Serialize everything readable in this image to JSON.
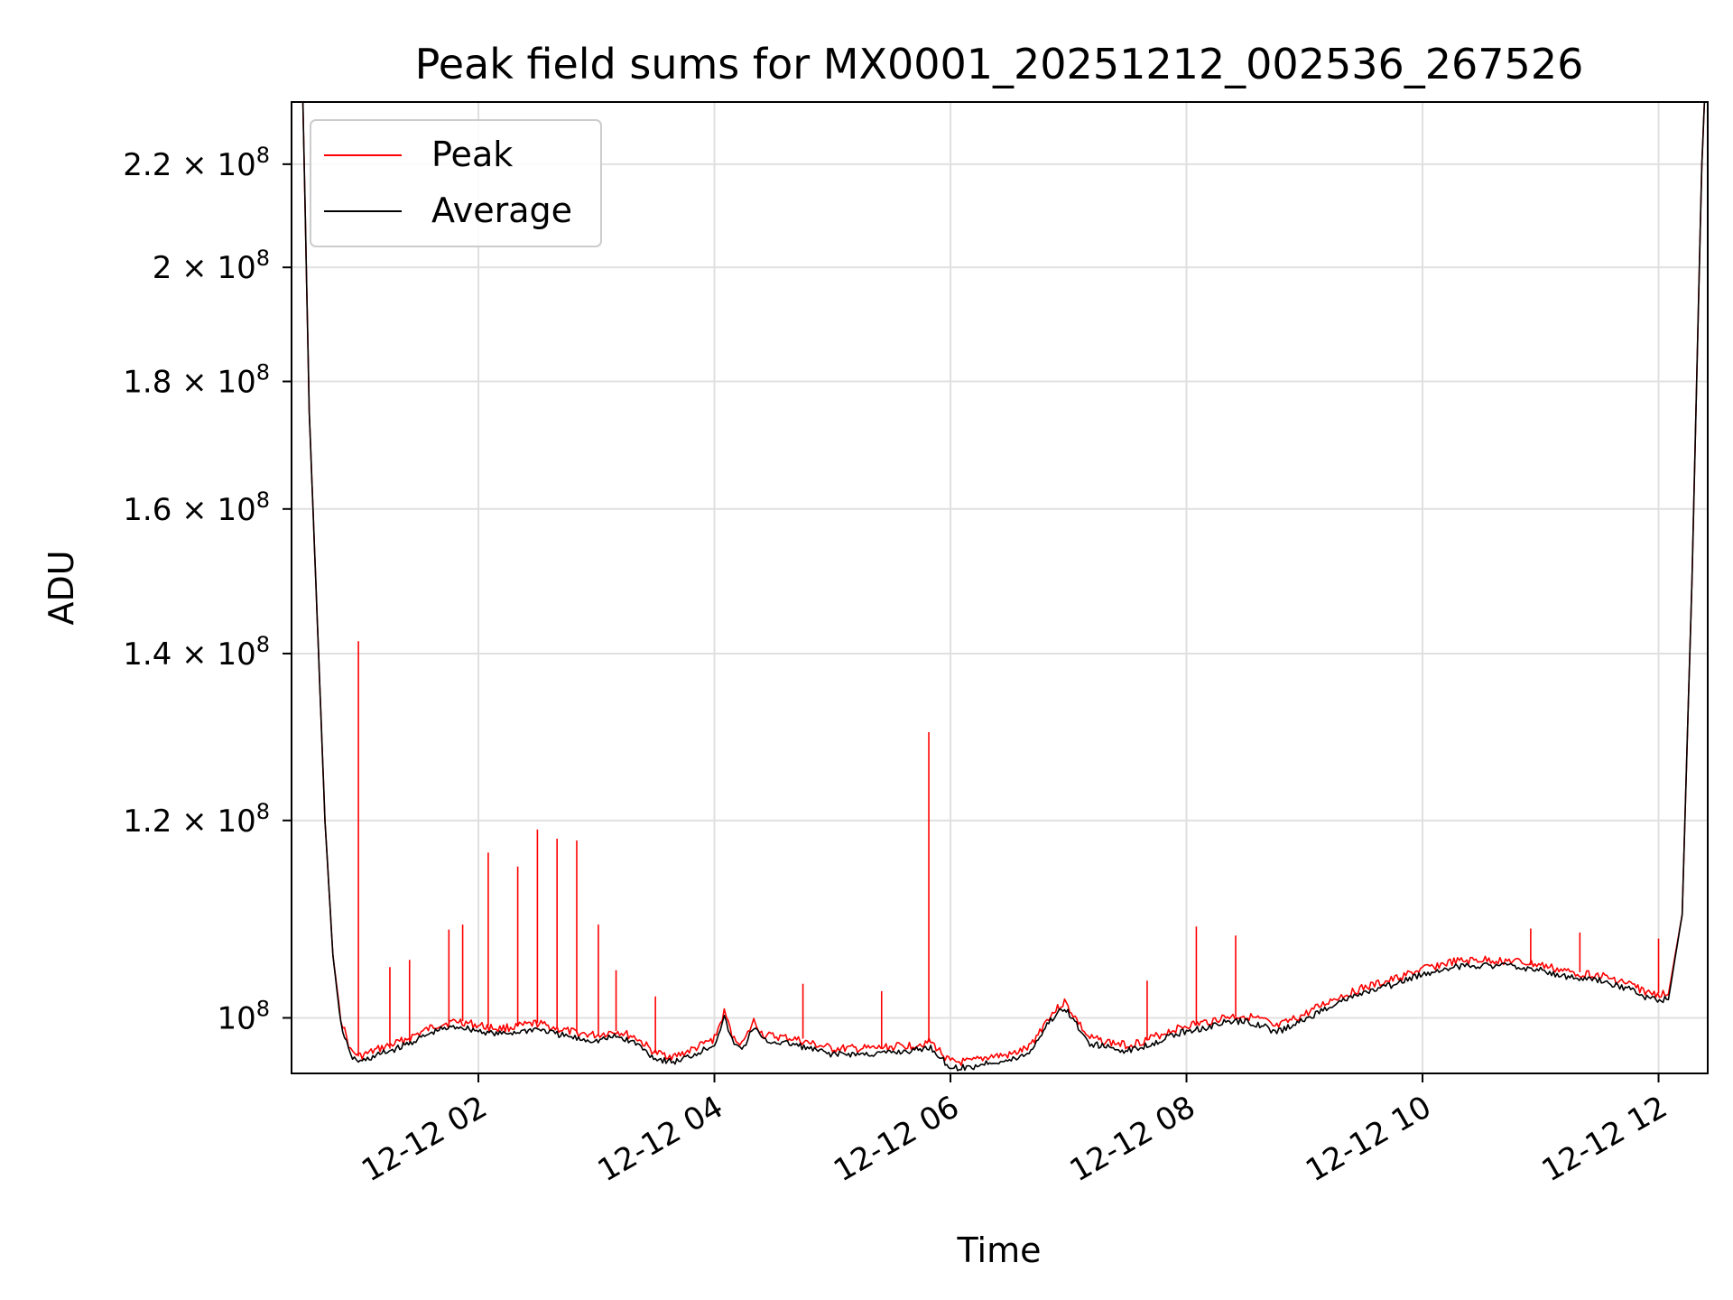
{
  "chart_data": {
    "type": "line",
    "title": "Peak field sums for MX0001_20251212_002536_267526",
    "xlabel": "Time",
    "ylabel": "ADU",
    "y_scale": "log",
    "grid": true,
    "legend_position": "top-left",
    "xlim": [
      "2025-12-12 00:25",
      "2025-12-12 12:25"
    ],
    "ylim": [
      95000000,
      233000000
    ],
    "x_ticks": [
      "12-12 02",
      "12-12 04",
      "12-12 06",
      "12-12 08",
      "12-12 10",
      "12-12 12"
    ],
    "x_tick_values": [
      "2025-12-12 02:00",
      "2025-12-12 04:00",
      "2025-12-12 06:00",
      "2025-12-12 08:00",
      "2025-12-12 10:00",
      "2025-12-12 12:00"
    ],
    "y_ticks": [
      {
        "value": 100000000,
        "mantissa": "",
        "exponent": "8"
      },
      {
        "value": 120000000,
        "mantissa": "1.2",
        "exponent": "8"
      },
      {
        "value": 140000000,
        "mantissa": "1.4",
        "exponent": "8"
      },
      {
        "value": 160000000,
        "mantissa": "1.6",
        "exponent": "8"
      },
      {
        "value": 180000000,
        "mantissa": "1.8",
        "exponent": "8"
      },
      {
        "value": 200000000,
        "mantissa": "2",
        "exponent": "8"
      },
      {
        "value": 220000000,
        "mantissa": "2.2",
        "exponent": "8"
      }
    ],
    "series": [
      {
        "name": "Peak",
        "color": "#ff0000",
        "points": [
          [
            "2025-12-12 00:30",
            250000000
          ],
          [
            "2025-12-12 00:34",
            175000000
          ],
          [
            "2025-12-12 00:38",
            145000000
          ],
          [
            "2025-12-12 00:42",
            120000000
          ],
          [
            "2025-12-12 00:46",
            106000000
          ],
          [
            "2025-12-12 00:50",
            100000000
          ],
          [
            "2025-12-12 00:55",
            97000000
          ],
          [
            "2025-12-12 01:00",
            96500000
          ],
          [
            "2025-12-12 01:10",
            97200000
          ],
          [
            "2025-12-12 01:20",
            97800000
          ],
          [
            "2025-12-12 01:30",
            98600000
          ],
          [
            "2025-12-12 01:40",
            99400000
          ],
          [
            "2025-12-12 01:50",
            99700000
          ],
          [
            "2025-12-12 02:00",
            99300000
          ],
          [
            "2025-12-12 02:10",
            99000000
          ],
          [
            "2025-12-12 02:20",
            99200000
          ],
          [
            "2025-12-12 02:30",
            99500000
          ],
          [
            "2025-12-12 02:40",
            99000000
          ],
          [
            "2025-12-12 02:50",
            98600000
          ],
          [
            "2025-12-12 03:00",
            98400000
          ],
          [
            "2025-12-12 03:10",
            98800000
          ],
          [
            "2025-12-12 03:20",
            98200000
          ],
          [
            "2025-12-12 03:30",
            96800000
          ],
          [
            "2025-12-12 03:40",
            96500000
          ],
          [
            "2025-12-12 03:50",
            97200000
          ],
          [
            "2025-12-12 04:00",
            98100000
          ],
          [
            "2025-12-12 04:05",
            100500000
          ],
          [
            "2025-12-12 04:10",
            98000000
          ],
          [
            "2025-12-12 04:15",
            97800000
          ],
          [
            "2025-12-12 04:20",
            99700000
          ],
          [
            "2025-12-12 04:25",
            98400000
          ],
          [
            "2025-12-12 04:40",
            98100000
          ],
          [
            "2025-12-12 04:50",
            97600000
          ],
          [
            "2025-12-12 05:00",
            97200000
          ],
          [
            "2025-12-12 05:20",
            97200000
          ],
          [
            "2025-12-12 05:40",
            97500000
          ],
          [
            "2025-12-12 05:50",
            97800000
          ],
          [
            "2025-12-12 06:00",
            96000000
          ],
          [
            "2025-12-12 06:10",
            96000000
          ],
          [
            "2025-12-12 06:20",
            96500000
          ],
          [
            "2025-12-12 06:30",
            96600000
          ],
          [
            "2025-12-12 06:40",
            97300000
          ],
          [
            "2025-12-12 06:50",
            100100000
          ],
          [
            "2025-12-12 06:58",
            101500000
          ],
          [
            "2025-12-12 07:05",
            99600000
          ],
          [
            "2025-12-12 07:10",
            98200000
          ],
          [
            "2025-12-12 07:20",
            97800000
          ],
          [
            "2025-12-12 07:30",
            97500000
          ],
          [
            "2025-12-12 07:40",
            98000000
          ],
          [
            "2025-12-12 07:50",
            98700000
          ],
          [
            "2025-12-12 08:00",
            99300000
          ],
          [
            "2025-12-12 08:10",
            99600000
          ],
          [
            "2025-12-12 08:20",
            100100000
          ],
          [
            "2025-12-12 08:30",
            100200000
          ],
          [
            "2025-12-12 08:40",
            99700000
          ],
          [
            "2025-12-12 08:45",
            99100000
          ],
          [
            "2025-12-12 09:00",
            100300000
          ],
          [
            "2025-12-12 09:15",
            101800000
          ],
          [
            "2025-12-12 09:30",
            102800000
          ],
          [
            "2025-12-12 09:45",
            103600000
          ],
          [
            "2025-12-12 10:00",
            104600000
          ],
          [
            "2025-12-12 10:15",
            105300000
          ],
          [
            "2025-12-12 10:30",
            105500000
          ],
          [
            "2025-12-12 10:45",
            105400000
          ],
          [
            "2025-12-12 11:00",
            105000000
          ],
          [
            "2025-12-12 11:15",
            104300000
          ],
          [
            "2025-12-12 11:30",
            104000000
          ],
          [
            "2025-12-12 11:45",
            103200000
          ],
          [
            "2025-12-12 11:55",
            102300000
          ],
          [
            "2025-12-12 12:05",
            102200000
          ],
          [
            "2025-12-12 12:12",
            110000000
          ],
          [
            "2025-12-12 12:17",
            150000000
          ],
          [
            "2025-12-12 12:22",
            220000000
          ],
          [
            "2025-12-12 12:25",
            250000000
          ]
        ],
        "spikes": [
          [
            "2025-12-12 00:59",
            141600000
          ],
          [
            "2025-12-12 01:15",
            104800000
          ],
          [
            "2025-12-12 01:25",
            105500000
          ],
          [
            "2025-12-12 01:45",
            108500000
          ],
          [
            "2025-12-12 01:52",
            109000000
          ],
          [
            "2025-12-12 02:05",
            116500000
          ],
          [
            "2025-12-12 02:20",
            115000000
          ],
          [
            "2025-12-12 02:30",
            119000000
          ],
          [
            "2025-12-12 02:40",
            118000000
          ],
          [
            "2025-12-12 02:50",
            117800000
          ],
          [
            "2025-12-12 03:01",
            109000000
          ],
          [
            "2025-12-12 03:10",
            104500000
          ],
          [
            "2025-12-12 03:30",
            102000000
          ],
          [
            "2025-12-12 04:45",
            103200000
          ],
          [
            "2025-12-12 05:25",
            102500000
          ],
          [
            "2025-12-12 05:49",
            130200000
          ],
          [
            "2025-12-12 07:40",
            103500000
          ],
          [
            "2025-12-12 08:05",
            108800000
          ],
          [
            "2025-12-12 08:25",
            107900000
          ],
          [
            "2025-12-12 10:55",
            108600000
          ],
          [
            "2025-12-12 11:20",
            108200000
          ],
          [
            "2025-12-12 12:00",
            107600000
          ]
        ]
      },
      {
        "name": "Average",
        "color": "#000000",
        "points": [
          [
            "2025-12-12 00:30",
            250000000
          ],
          [
            "2025-12-12 00:34",
            175000000
          ],
          [
            "2025-12-12 00:38",
            145000000
          ],
          [
            "2025-12-12 00:42",
            120000000
          ],
          [
            "2025-12-12 00:46",
            106000000
          ],
          [
            "2025-12-12 00:50",
            99500000
          ],
          [
            "2025-12-12 00:55",
            96500000
          ],
          [
            "2025-12-12 01:00",
            96000000
          ],
          [
            "2025-12-12 01:10",
            96700000
          ],
          [
            "2025-12-12 01:20",
            97300000
          ],
          [
            "2025-12-12 01:30",
            98100000
          ],
          [
            "2025-12-12 01:40",
            98900000
          ],
          [
            "2025-12-12 01:50",
            99200000
          ],
          [
            "2025-12-12 02:00",
            98800000
          ],
          [
            "2025-12-12 02:10",
            98500000
          ],
          [
            "2025-12-12 02:20",
            98700000
          ],
          [
            "2025-12-12 02:30",
            99000000
          ],
          [
            "2025-12-12 02:40",
            98500000
          ],
          [
            "2025-12-12 02:50",
            98100000
          ],
          [
            "2025-12-12 03:00",
            97900000
          ],
          [
            "2025-12-12 03:10",
            98300000
          ],
          [
            "2025-12-12 03:20",
            97700000
          ],
          [
            "2025-12-12 03:30",
            96300000
          ],
          [
            "2025-12-12 03:40",
            96000000
          ],
          [
            "2025-12-12 03:50",
            96700000
          ],
          [
            "2025-12-12 04:00",
            97600000
          ],
          [
            "2025-12-12 04:05",
            100000000
          ],
          [
            "2025-12-12 04:10",
            97500000
          ],
          [
            "2025-12-12 04:15",
            97300000
          ],
          [
            "2025-12-12 04:20",
            99200000
          ],
          [
            "2025-12-12 04:25",
            97900000
          ],
          [
            "2025-12-12 04:40",
            97600000
          ],
          [
            "2025-12-12 04:50",
            97100000
          ],
          [
            "2025-12-12 05:00",
            96700000
          ],
          [
            "2025-12-12 05:20",
            96700000
          ],
          [
            "2025-12-12 05:40",
            97000000
          ],
          [
            "2025-12-12 05:50",
            97300000
          ],
          [
            "2025-12-12 06:00",
            95500000
          ],
          [
            "2025-12-12 06:10",
            95500000
          ],
          [
            "2025-12-12 06:20",
            96000000
          ],
          [
            "2025-12-12 06:30",
            96100000
          ],
          [
            "2025-12-12 06:40",
            96800000
          ],
          [
            "2025-12-12 06:50",
            99600000
          ],
          [
            "2025-12-12 06:58",
            101000000
          ],
          [
            "2025-12-12 07:05",
            99100000
          ],
          [
            "2025-12-12 07:10",
            97700000
          ],
          [
            "2025-12-12 07:20",
            97300000
          ],
          [
            "2025-12-12 07:30",
            97000000
          ],
          [
            "2025-12-12 07:40",
            97500000
          ],
          [
            "2025-12-12 07:50",
            98200000
          ],
          [
            "2025-12-12 08:00",
            98800000
          ],
          [
            "2025-12-12 08:10",
            99100000
          ],
          [
            "2025-12-12 08:20",
            99600000
          ],
          [
            "2025-12-12 08:30",
            99700000
          ],
          [
            "2025-12-12 08:40",
            99200000
          ],
          [
            "2025-12-12 08:45",
            98600000
          ],
          [
            "2025-12-12 09:00",
            99800000
          ],
          [
            "2025-12-12 09:15",
            101300000
          ],
          [
            "2025-12-12 09:30",
            102300000
          ],
          [
            "2025-12-12 09:45",
            103100000
          ],
          [
            "2025-12-12 10:00",
            104100000
          ],
          [
            "2025-12-12 10:15",
            104800000
          ],
          [
            "2025-12-12 10:30",
            105000000
          ],
          [
            "2025-12-12 10:45",
            104900000
          ],
          [
            "2025-12-12 11:00",
            104500000
          ],
          [
            "2025-12-12 11:15",
            103800000
          ],
          [
            "2025-12-12 11:30",
            103500000
          ],
          [
            "2025-12-12 11:45",
            102700000
          ],
          [
            "2025-12-12 11:55",
            101800000
          ],
          [
            "2025-12-12 12:05",
            101700000
          ],
          [
            "2025-12-12 12:12",
            110000000
          ],
          [
            "2025-12-12 12:17",
            150000000
          ],
          [
            "2025-12-12 12:22",
            220000000
          ],
          [
            "2025-12-12 12:25",
            250000000
          ]
        ]
      }
    ]
  }
}
